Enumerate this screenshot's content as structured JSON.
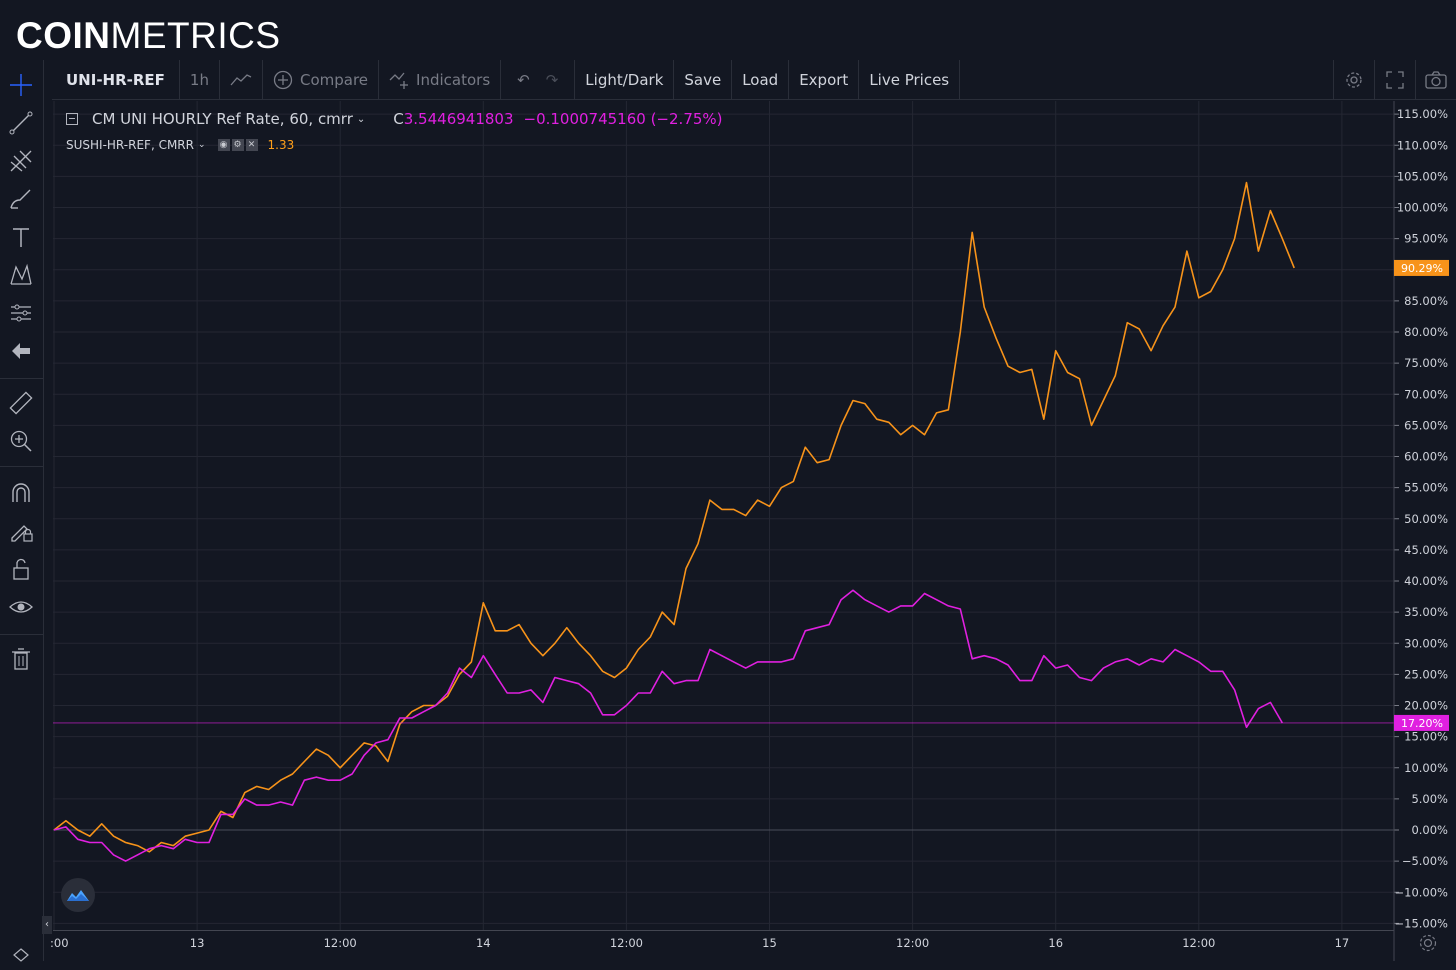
{
  "brand": {
    "bold": "COIN",
    "light": "METRICS"
  },
  "toolbar": {
    "symbol": "UNI-HR-REF",
    "interval": "1h",
    "compare": "Compare",
    "indicators": "Indicators",
    "light_dark": "Light/Dark",
    "save": "Save",
    "load": "Load",
    "export": "Export",
    "live_prices": "Live Prices"
  },
  "legend": {
    "main_series": "CM UNI HOURLY Ref Rate, 60, cmrr",
    "close_prefix": "C",
    "close_value": "3.5446941803",
    "change_value": "−0.1000745160 (−2.75%)",
    "compare_series": "SUSHI-HR-REF, CMRR",
    "compare_value": "1.33"
  },
  "colors": {
    "background": "#131722",
    "grid": "#242733",
    "uni_line": "#e020e0",
    "sushi_line": "#f7931a",
    "text": "#d1d4dc"
  },
  "chart_data": {
    "type": "line",
    "y_unit": "percent change",
    "ylim": [
      -15,
      115
    ],
    "yticks": [
      "115.00%",
      "110.00%",
      "105.00%",
      "100.00%",
      "95.00%",
      "90.00%",
      "85.00%",
      "80.00%",
      "75.00%",
      "70.00%",
      "65.00%",
      "60.00%",
      "55.00%",
      "50.00%",
      "45.00%",
      "40.00%",
      "35.00%",
      "30.00%",
      "25.00%",
      "20.00%",
      "15.00%",
      "10.00%",
      "5.00%",
      "0.00%",
      "−5.00%",
      "−10.00%",
      "−15.00%"
    ],
    "ytick_values": [
      115,
      110,
      105,
      100,
      95,
      90,
      85,
      80,
      75,
      70,
      65,
      60,
      55,
      50,
      45,
      40,
      35,
      30,
      25,
      20,
      15,
      10,
      5,
      0,
      -5,
      -10,
      -15
    ],
    "xlim_hours": [
      0,
      120
    ],
    "xticks": [
      {
        "label": ":00",
        "hour": 0
      },
      {
        "label": "13",
        "hour": 12
      },
      {
        "label": "12:00",
        "hour": 24
      },
      {
        "label": "14",
        "hour": 36
      },
      {
        "label": "12:00",
        "hour": 48
      },
      {
        "label": "15",
        "hour": 60
      },
      {
        "label": "12:00",
        "hour": 72
      },
      {
        "label": "16",
        "hour": 84
      },
      {
        "label": "12:00",
        "hour": 96
      },
      {
        "label": "17",
        "hour": 108
      }
    ],
    "grid": true,
    "series": [
      {
        "name": "CM UNI HOURLY Ref Rate, 60, cmrr",
        "color": "#e020e0",
        "last_label": "17.20%",
        "points": [
          [
            0,
            0
          ],
          [
            1,
            0.5
          ],
          [
            2,
            -1.5
          ],
          [
            3,
            -2
          ],
          [
            4,
            -2
          ],
          [
            5,
            -4
          ],
          [
            6,
            -5
          ],
          [
            7,
            -4
          ],
          [
            8,
            -3
          ],
          [
            9,
            -2.5
          ],
          [
            10,
            -3
          ],
          [
            11,
            -1.5
          ],
          [
            12,
            -2
          ],
          [
            13,
            -2
          ],
          [
            14,
            2.5
          ],
          [
            15,
            2.5
          ],
          [
            16,
            5
          ],
          [
            17,
            4
          ],
          [
            18,
            4
          ],
          [
            19,
            4.5
          ],
          [
            20,
            4
          ],
          [
            21,
            8
          ],
          [
            22,
            8.5
          ],
          [
            23,
            8
          ],
          [
            24,
            8
          ],
          [
            25,
            9
          ],
          [
            26,
            12
          ],
          [
            27,
            14
          ],
          [
            28,
            14.5
          ],
          [
            29,
            18
          ],
          [
            30,
            18
          ],
          [
            31,
            19
          ],
          [
            32,
            20
          ],
          [
            33,
            22
          ],
          [
            34,
            26
          ],
          [
            35,
            24.5
          ],
          [
            36,
            28
          ],
          [
            37,
            25
          ],
          [
            38,
            22
          ],
          [
            39,
            22
          ],
          [
            40,
            22.5
          ],
          [
            41,
            20.5
          ],
          [
            42,
            24.5
          ],
          [
            43,
            24
          ],
          [
            44,
            23.5
          ],
          [
            45,
            22
          ],
          [
            46,
            18.5
          ],
          [
            47,
            18.5
          ],
          [
            48,
            20
          ],
          [
            49,
            22
          ],
          [
            50,
            22
          ],
          [
            51,
            25.5
          ],
          [
            52,
            23.5
          ],
          [
            53,
            24
          ],
          [
            54,
            24
          ],
          [
            55,
            29
          ],
          [
            56,
            28
          ],
          [
            57,
            27
          ],
          [
            58,
            26
          ],
          [
            59,
            27
          ],
          [
            60,
            27
          ],
          [
            61,
            27
          ],
          [
            62,
            27.5
          ],
          [
            63,
            32
          ],
          [
            64,
            32.5
          ],
          [
            65,
            33
          ],
          [
            66,
            37
          ],
          [
            67,
            38.5
          ],
          [
            68,
            37
          ],
          [
            69,
            36
          ],
          [
            70,
            35
          ],
          [
            71,
            36
          ],
          [
            72,
            36
          ],
          [
            73,
            38
          ],
          [
            74,
            37
          ],
          [
            75,
            36
          ],
          [
            76,
            35.5
          ],
          [
            77,
            27.5
          ],
          [
            78,
            28
          ],
          [
            79,
            27.5
          ],
          [
            80,
            26.5
          ],
          [
            81,
            24
          ],
          [
            82,
            24
          ],
          [
            83,
            28
          ],
          [
            84,
            26
          ],
          [
            85,
            26.5
          ],
          [
            86,
            24.5
          ],
          [
            87,
            24
          ],
          [
            88,
            26
          ],
          [
            89,
            27
          ],
          [
            90,
            27.5
          ],
          [
            91,
            26.5
          ],
          [
            92,
            27.5
          ],
          [
            93,
            27
          ],
          [
            94,
            29
          ],
          [
            95,
            28
          ],
          [
            96,
            27
          ],
          [
            97,
            25.5
          ],
          [
            98,
            25.5
          ],
          [
            99,
            22.5
          ],
          [
            100,
            16.5
          ],
          [
            101,
            19.5
          ],
          [
            102,
            20.5
          ],
          [
            103,
            17.2
          ]
        ]
      },
      {
        "name": "SUSHI-HR-REF, CMRR",
        "color": "#f7931a",
        "last_label": "90.29%",
        "points": [
          [
            0,
            0
          ],
          [
            1,
            1.5
          ],
          [
            2,
            0
          ],
          [
            3,
            -1
          ],
          [
            4,
            1
          ],
          [
            5,
            -1
          ],
          [
            6,
            -2
          ],
          [
            7,
            -2.5
          ],
          [
            8,
            -3.5
          ],
          [
            9,
            -2
          ],
          [
            10,
            -2.5
          ],
          [
            11,
            -1
          ],
          [
            12,
            -0.5
          ],
          [
            13,
            0
          ],
          [
            14,
            3
          ],
          [
            15,
            2
          ],
          [
            16,
            6
          ],
          [
            17,
            7
          ],
          [
            18,
            6.5
          ],
          [
            19,
            8
          ],
          [
            20,
            9
          ],
          [
            21,
            11
          ],
          [
            22,
            13
          ],
          [
            23,
            12
          ],
          [
            24,
            10
          ],
          [
            25,
            12
          ],
          [
            26,
            14
          ],
          [
            27,
            13.5
          ],
          [
            28,
            11
          ],
          [
            29,
            17
          ],
          [
            30,
            19
          ],
          [
            31,
            20
          ],
          [
            32,
            20
          ],
          [
            33,
            21.5
          ],
          [
            34,
            25
          ],
          [
            35,
            27
          ],
          [
            36,
            36.5
          ],
          [
            37,
            32
          ],
          [
            38,
            32
          ],
          [
            39,
            33
          ],
          [
            40,
            30
          ],
          [
            41,
            28
          ],
          [
            42,
            30
          ],
          [
            43,
            32.5
          ],
          [
            44,
            30
          ],
          [
            45,
            28
          ],
          [
            46,
            25.5
          ],
          [
            47,
            24.5
          ],
          [
            48,
            26
          ],
          [
            49,
            29
          ],
          [
            50,
            31
          ],
          [
            51,
            35
          ],
          [
            52,
            33
          ],
          [
            53,
            42
          ],
          [
            54,
            46
          ],
          [
            55,
            53
          ],
          [
            56,
            51.5
          ],
          [
            57,
            51.5
          ],
          [
            58,
            50.5
          ],
          [
            59,
            53
          ],
          [
            60,
            52
          ],
          [
            61,
            55
          ],
          [
            62,
            56
          ],
          [
            63,
            61.5
          ],
          [
            64,
            59
          ],
          [
            65,
            59.5
          ],
          [
            66,
            65
          ],
          [
            67,
            69
          ],
          [
            68,
            68.5
          ],
          [
            69,
            66
          ],
          [
            70,
            65.5
          ],
          [
            71,
            63.5
          ],
          [
            72,
            65
          ],
          [
            73,
            63.5
          ],
          [
            74,
            67
          ],
          [
            75,
            67.5
          ],
          [
            76,
            80
          ],
          [
            77,
            96
          ],
          [
            78,
            84
          ],
          [
            79,
            79
          ],
          [
            80,
            74.5
          ],
          [
            81,
            73.5
          ],
          [
            82,
            74
          ],
          [
            83,
            66
          ],
          [
            84,
            77
          ],
          [
            85,
            73.5
          ],
          [
            86,
            72.5
          ],
          [
            87,
            65
          ],
          [
            88,
            69
          ],
          [
            89,
            73
          ],
          [
            90,
            81.5
          ],
          [
            91,
            80.5
          ],
          [
            92,
            77
          ],
          [
            93,
            81
          ],
          [
            94,
            84
          ],
          [
            95,
            93
          ],
          [
            96,
            85.5
          ],
          [
            97,
            86.5
          ],
          [
            98,
            90
          ],
          [
            99,
            95
          ],
          [
            100,
            104
          ],
          [
            101,
            93
          ],
          [
            102,
            99.5
          ],
          [
            103,
            95
          ],
          [
            104,
            90.29
          ]
        ]
      }
    ]
  }
}
